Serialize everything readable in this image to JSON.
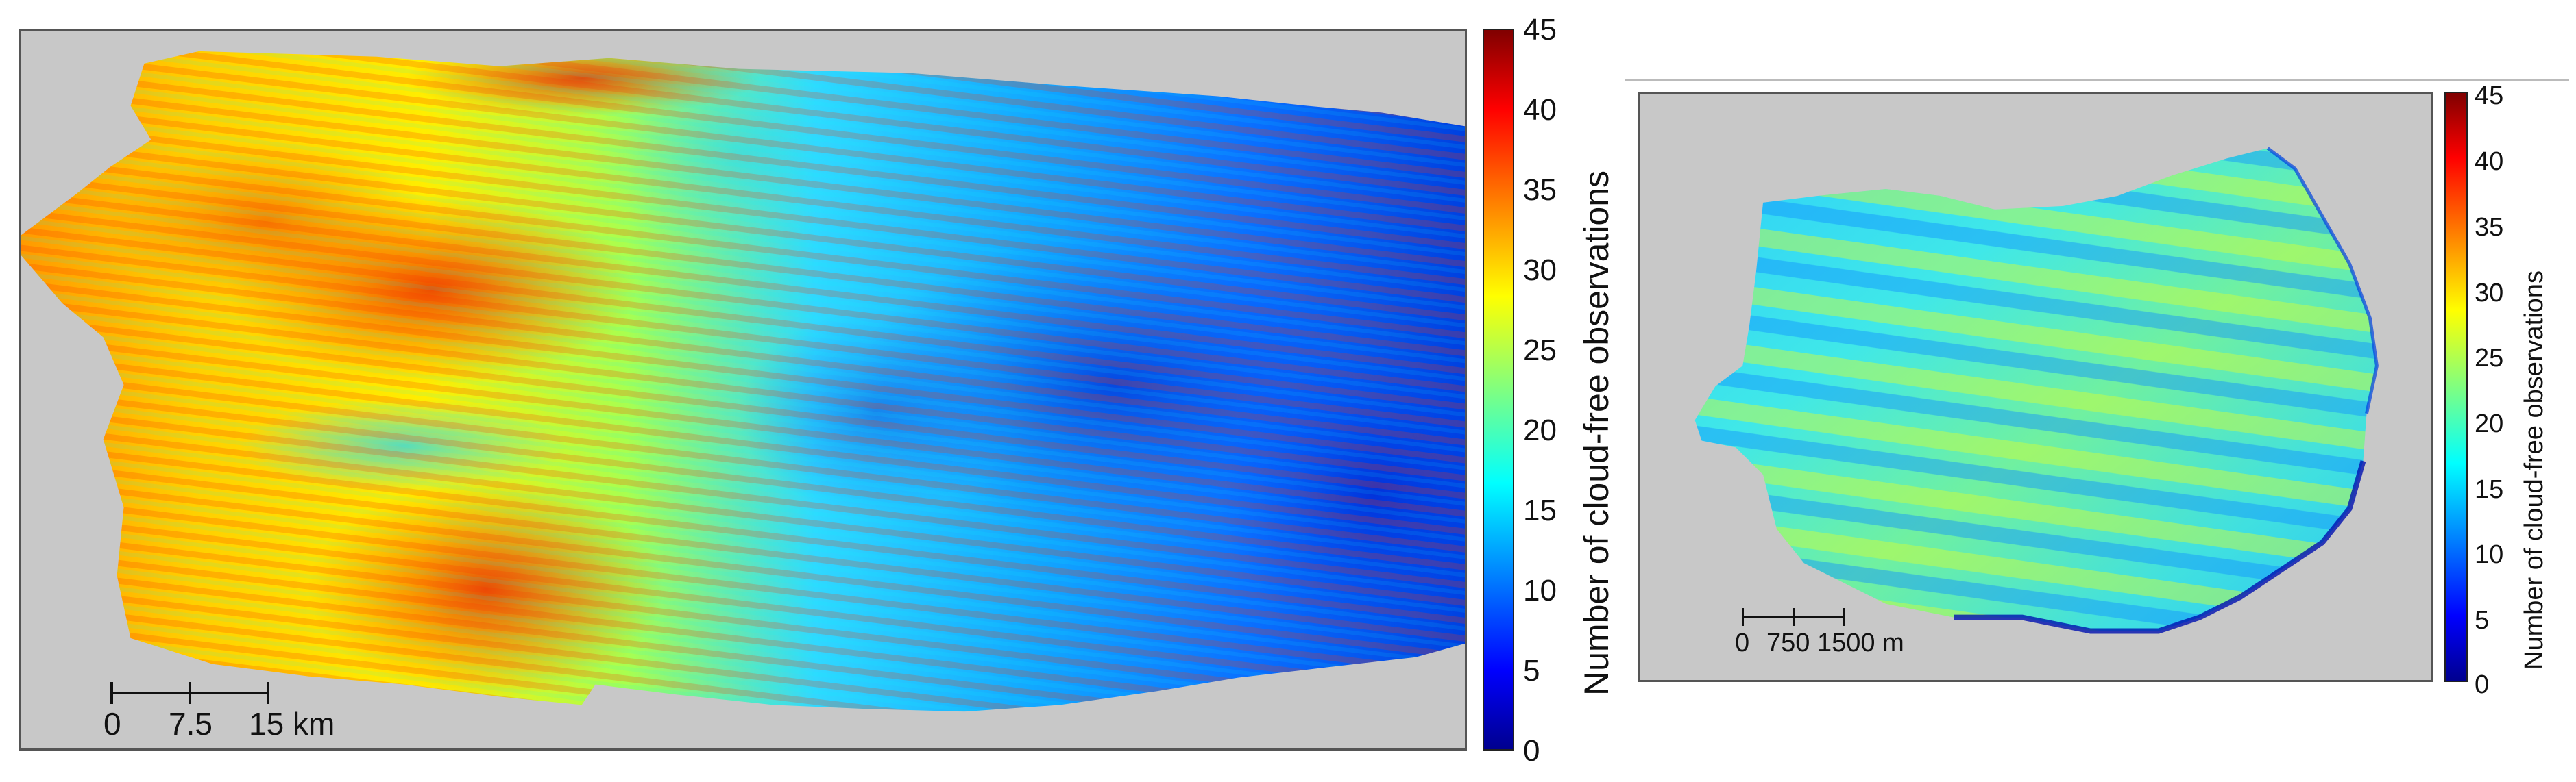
{
  "left_panel": {
    "colorbar": {
      "label": "Number of cloud-free observations",
      "ticks": [
        "45",
        "40",
        "35",
        "30",
        "25",
        "20",
        "15",
        "10",
        "5",
        "0"
      ],
      "min": 0,
      "max": 45
    },
    "scalebar": {
      "labels": [
        "0",
        "7.5",
        "15 km"
      ]
    }
  },
  "right_panel": {
    "colorbar": {
      "label": "Number of cloud-free observations",
      "ticks": [
        "45",
        "40",
        "35",
        "30",
        "25",
        "20",
        "15",
        "10",
        "5",
        "0"
      ],
      "min": 0,
      "max": 45
    },
    "scalebar": {
      "labels": [
        "0",
        "750",
        "1500 m"
      ]
    }
  },
  "colormap": {
    "name": "jet",
    "background_color": "#c8c8c8",
    "stops": [
      "#00008f",
      "#0000ff",
      "#0080ff",
      "#00ffff",
      "#80ff80",
      "#ffff00",
      "#ff8000",
      "#ff0000",
      "#800000"
    ]
  }
}
